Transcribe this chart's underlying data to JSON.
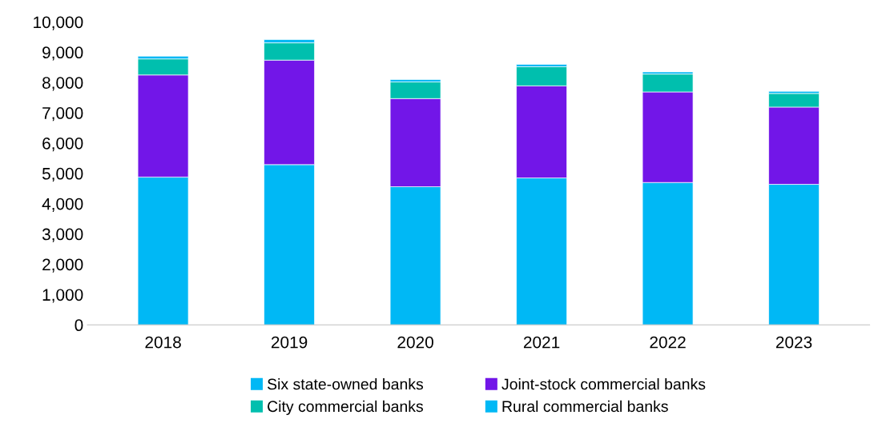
{
  "chart_data": {
    "type": "bar",
    "stacked": true,
    "categories": [
      "2018",
      "2019",
      "2020",
      "2021",
      "2022",
      "2023"
    ],
    "series": [
      {
        "name": "Six state-owned banks",
        "color": "#00b8f5",
        "values": [
          4880,
          5290,
          4560,
          4850,
          4700,
          4640
        ]
      },
      {
        "name": "Joint-stock commercial banks",
        "color": "#7216e8",
        "values": [
          3370,
          3450,
          2910,
          3040,
          2990,
          2550
        ]
      },
      {
        "name": "City commercial banks",
        "color": "#00bfae",
        "values": [
          530,
          570,
          550,
          630,
          590,
          450
        ]
      },
      {
        "name": "Rural commercial banks",
        "color": "#00b8f5",
        "values": [
          90,
          110,
          80,
          80,
          70,
          70
        ]
      }
    ],
    "ylim": [
      0,
      10000
    ],
    "yticks": [
      {
        "value": 0,
        "label": "0"
      },
      {
        "value": 1000,
        "label": "1,000"
      },
      {
        "value": 2000,
        "label": "2,000"
      },
      {
        "value": 3000,
        "label": "3,000"
      },
      {
        "value": 4000,
        "label": "4,000"
      },
      {
        "value": 5000,
        "label": "5,000"
      },
      {
        "value": 6000,
        "label": "6,000"
      },
      {
        "value": 7000,
        "label": "7,000"
      },
      {
        "value": 8000,
        "label": "8,000"
      },
      {
        "value": 9000,
        "label": "9,000"
      },
      {
        "value": 10000,
        "label": "10,000"
      }
    ],
    "grid": false,
    "legend": "bottom"
  }
}
